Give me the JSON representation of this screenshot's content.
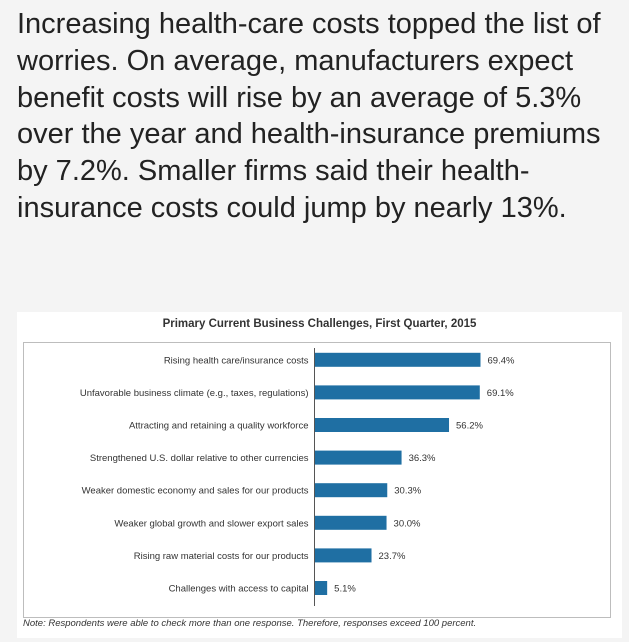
{
  "article": {
    "text": "Increasing health-care costs topped the list of worries. On average, manufacturers expect benefit costs will rise by an average of 5.3% over the year and health-insurance premiums by 7.2%. Smaller firms said their health-insurance costs could jump by nearly 13%."
  },
  "colors": {
    "bar": "#1f6fa3",
    "axis": "#555555"
  },
  "chart_data": {
    "type": "bar",
    "orientation": "horizontal",
    "title": "Primary Current Business Challenges, First Quarter, 2015",
    "categories": [
      "Rising health care/insurance costs",
      "Unfavorable business climate (e.g., taxes, regulations)",
      "Attracting and retaining a quality workforce",
      "Strengthened U.S. dollar relative to other currencies",
      "Weaker domestic economy and sales for our products",
      "Weaker global growth and slower export sales",
      "Rising raw material costs for our products",
      "Challenges with access to capital"
    ],
    "values": [
      69.4,
      69.1,
      56.2,
      36.3,
      30.3,
      30.0,
      23.7,
      5.1
    ],
    "labels": [
      "69.4%",
      "69.1%",
      "56.2%",
      "36.3%",
      "30.3%",
      "30.0%",
      "23.7%",
      "5.1%"
    ],
    "unit": "%",
    "xlim": [
      0,
      80
    ],
    "xlabel": "",
    "ylabel": "",
    "grid": false,
    "note": "Note: Respondents were able to check more than one response. Therefore, responses exceed 100 percent."
  }
}
